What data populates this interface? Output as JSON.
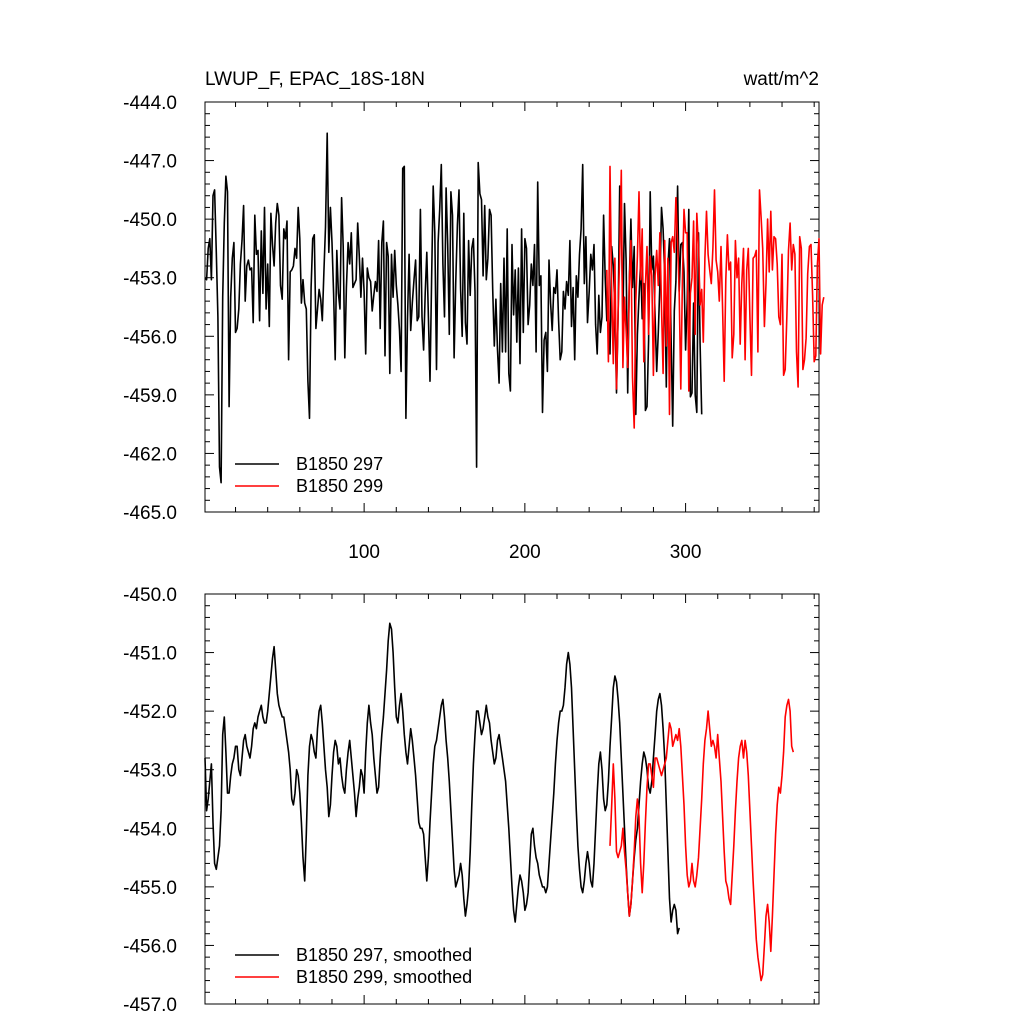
{
  "chart_data": [
    {
      "type": "line",
      "title": "LWUP_F, EPAC_18S-18N",
      "units": "watt/m^2",
      "ylim": [
        -465.0,
        -444.0
      ],
      "yticks": [
        -465.0,
        -462.0,
        -459.0,
        -456.0,
        -453.0,
        -450.0,
        -447.0,
        -444.0
      ],
      "ytick_labels": [
        "-465.0",
        "-462.0",
        "-459.0",
        "-456.0",
        "-453.0",
        "-450.0",
        "-447.0",
        "-444.0"
      ],
      "xlim": [
        1,
        383
      ],
      "xticks": [
        100,
        200,
        300
      ],
      "xtick_labels": [
        "100",
        "200",
        "300"
      ],
      "legend": [
        "B1850 297",
        "B1850 299"
      ],
      "legend_position": "bottom-left",
      "series": [
        {
          "name": "B1850 297",
          "color": "#000000",
          "x_start": 1,
          "values": [
            -453.0,
            -453.1,
            -451.5,
            -451.0,
            -453.1,
            -448.8,
            -448.5,
            -451.7,
            -455.0,
            -462.7,
            -463.5,
            -454.0,
            -450.2,
            -447.8,
            -448.6,
            -459.6,
            -454.0,
            -452.0,
            -451.2,
            -455.8,
            -455.6,
            -454.6,
            -452.3,
            -451.1,
            -449.3,
            -454.2,
            -452.4,
            -452.1,
            -452.6,
            -452.5,
            -455.3,
            -449.8,
            -451.8,
            -451.6,
            -455.2,
            -450.6,
            -453.8,
            -449.4,
            -454.6,
            -452.3,
            -455.5,
            -449.7,
            -451.3,
            -452.4,
            -450.2,
            -449.2,
            -449.8,
            -453.4,
            -454.1,
            -450.5,
            -451.0,
            -450.1,
            -457.2,
            -452.7,
            -452.6,
            -452.4,
            -451.5,
            -452.0,
            -449.4,
            -451.0,
            -454.3,
            -453.1,
            -454.3,
            -454.6,
            -458.3,
            -460.2,
            -453.5,
            -451.0,
            -450.8,
            -455.6,
            -454.6,
            -453.6,
            -454.1,
            -455.2,
            -452.7,
            -450.4,
            -445.6,
            -451.7,
            -449.4,
            -451.2,
            -453.8,
            -457.2,
            -451.6,
            -453.8,
            -454.6,
            -448.9,
            -451.4,
            -457.1,
            -453.5,
            -451.2,
            -452.3,
            -450.7,
            -453.5,
            -453.3,
            -453.1,
            -450.2,
            -451.9,
            -454.0,
            -452.0,
            -453.7,
            -456.9,
            -452.5,
            -453.0,
            -453.2,
            -454.7,
            -453.9,
            -453.2,
            -453.7,
            -451.1,
            -455.6,
            -451.2,
            -450.1,
            -457.0,
            -451.2,
            -451.9,
            -457.9,
            -451.8,
            -454.0,
            -451.6,
            -453.4,
            -454.4,
            -455.7,
            -457.8,
            -447.4,
            -447.3,
            -460.2,
            -455.1,
            -451.8,
            -455.7,
            -454.3,
            -453.1,
            -452.1,
            -455.2,
            -455.0,
            -449.5,
            -455.0,
            -456.7,
            -453.8,
            -451.7,
            -455.0,
            -458.3,
            -453.1,
            -448.3,
            -450.7,
            -457.7,
            -451.2,
            -449.5,
            -447.2,
            -452.3,
            -455.0,
            -448.4,
            -451.3,
            -455.9,
            -448.6,
            -449.8,
            -457.1,
            -453.3,
            -450.3,
            -448.5,
            -453.6,
            -456.0,
            -449.7,
            -455.3,
            -456.4,
            -451.1,
            -453.9,
            -451.5,
            -451.0,
            -453.7,
            -462.7,
            -447.1,
            -448.7,
            -449.0,
            -452.9,
            -449.3,
            -453.1,
            -452.0,
            -449.5,
            -449.8,
            -453.6,
            -456.5,
            -454.1,
            -456.7,
            -458.4,
            -453.3,
            -456.8,
            -452.0,
            -456.8,
            -450.5,
            -457.9,
            -458.8,
            -451.3,
            -454.9,
            -452.6,
            -456.3,
            -452.5,
            -457.4,
            -450.5,
            -455.8,
            -451.0,
            -451.5,
            -455.4,
            -454.4,
            -452.3,
            -453.4,
            -451.3,
            -456.8,
            -448.1,
            -453.4,
            -452.9,
            -459.9,
            -456.2,
            -455.8,
            -457.8,
            -452.1,
            -454.3,
            -455.7,
            -453.5,
            -453.8,
            -452.6,
            -455.2,
            -457.2,
            -456.8,
            -453.7,
            -454.6,
            -453.2,
            -453.9,
            -451.1,
            -455.5,
            -453.5,
            -457.2,
            -452.9,
            -454.0,
            -451.8,
            -450.5,
            -447.2,
            -453.3,
            -450.9,
            -455.3,
            -453.7,
            -451.8,
            -452.6,
            -451.3,
            -455.4,
            -456.9,
            -453.9,
            -455.8,
            -455.0,
            -449.8,
            -453.0,
            -455.2,
            -454.7,
            -456.9,
            -451.4,
            -452.4,
            -454.6,
            -458.9,
            -455.0,
            -448.3,
            -449.9,
            -455.3,
            -449.2,
            -452.1,
            -458.9,
            -453.2,
            -450.0,
            -453.5,
            -451.4,
            -460.0,
            -455.9,
            -454.0,
            -452.2,
            -455.1,
            -453.3,
            -459.8,
            -459.6,
            -456.2,
            -448.6,
            -452.6,
            -451.9,
            -455.0,
            -457.8,
            -455.8,
            -453.3,
            -449.4,
            -450.5,
            -452.9,
            -458.6,
            -452.4,
            -451.0,
            -456.1,
            -460.6,
            -454.7,
            -453.2,
            -448.3,
            -453.7,
            -451.3,
            -451.2,
            -452.7,
            -456.7,
            -454.2,
            -449.5,
            -459.1,
            -458.9,
            -454.3,
            -459.0,
            -459.9,
            -450.7,
            -456.4,
            -460.0
          ]
        },
        {
          "name": "B1850 299",
          "color": "#ff0000",
          "x_start": 251,
          "values": [
            -452.6,
            -457.3,
            -447.3,
            -453.9,
            -457.4,
            -452.0,
            -458.7,
            -454.8,
            -451.8,
            -447.5,
            -457.6,
            -454.0,
            -455.7,
            -457.6,
            -453.2,
            -451.1,
            -458.1,
            -460.7,
            -454.2,
            -451.9,
            -448.6,
            -453.1,
            -450.5,
            -457.3,
            -453.4,
            -451.4,
            -455.9,
            -451.9,
            -452.9,
            -458.0,
            -452.9,
            -451.6,
            -453.4,
            -450.7,
            -454.5,
            -457.9,
            -451.1,
            -456.5,
            -452.0,
            -460.0,
            -451.2,
            -450.9,
            -451.7,
            -448.9,
            -451.2,
            -453.8,
            -458.7,
            -453.2,
            -449.5,
            -450.7,
            -450.7,
            -458.8,
            -453.8,
            -453.0,
            -450.1,
            -455.9,
            -449.7,
            -451.5,
            -454.4,
            -453.6,
            -456.3,
            -452.0,
            -449.6,
            -451.8,
            -452.6,
            -453.3,
            -451.5,
            -448.5,
            -452.1,
            -452.7,
            -454.2,
            -451.4,
            -454.6,
            -458.3,
            -453.1,
            -450.8,
            -452.6,
            -452.2,
            -457.1,
            -455.9,
            -451.1,
            -453.0,
            -452.0,
            -456.4,
            -453.3,
            -451.5,
            -457.2,
            -452.6,
            -451.5,
            -455.0,
            -458.0,
            -452.0,
            -451.9,
            -451.6,
            -456.8,
            -448.5,
            -449.9,
            -451.5,
            -455.5,
            -453.3,
            -450.0,
            -452.7,
            -449.6,
            -452.6,
            -450.9,
            -451.0,
            -452.3,
            -455.0,
            -455.4,
            -451.8,
            -458.0,
            -457.7,
            -454.9,
            -451.6,
            -450.2,
            -452.6,
            -451.3,
            -451.8,
            -456.8,
            -458.6,
            -450.9,
            -451.5,
            -457.7,
            -457.2,
            -456.1,
            -452.8,
            -451.4,
            -451.3,
            -453.9,
            -457.3,
            -457.0,
            -452.3,
            -451.0,
            -456.9,
            -454.4,
            -454.0
          ]
        }
      ]
    },
    {
      "type": "line",
      "title": "",
      "ylim": [
        -457.0,
        -450.0
      ],
      "yticks": [
        -457.0,
        -456.0,
        -455.0,
        -454.0,
        -453.0,
        -452.0,
        -451.0,
        -450.0
      ],
      "ytick_labels": [
        "-457.0",
        "-456.0",
        "-455.0",
        "-454.0",
        "-453.0",
        "-452.0",
        "-451.0",
        "-450.0"
      ],
      "xlim": [
        1,
        383
      ],
      "xticks": [
        100,
        200,
        300
      ],
      "xtick_labels": [],
      "legend": [
        "B1850 297, smoothed",
        "B1850 299, smoothed"
      ],
      "legend_position": "bottom-left",
      "series": [
        {
          "name": "B1850 297, smoothed",
          "color": "#000000",
          "x_start": 1,
          "values": [
            -452.8,
            -453.7,
            -453.5,
            -453.2,
            -452.9,
            -453.9,
            -454.6,
            -454.7,
            -454.5,
            -454.3,
            -453.7,
            -452.4,
            -452.1,
            -452.7,
            -453.4,
            -453.4,
            -453.1,
            -452.9,
            -452.8,
            -452.6,
            -452.6,
            -453.0,
            -453.1,
            -452.8,
            -452.5,
            -452.4,
            -452.6,
            -452.7,
            -452.8,
            -452.6,
            -452.3,
            -452.2,
            -452.3,
            -452.1,
            -452.0,
            -451.9,
            -452.1,
            -452.2,
            -452.2,
            -452.0,
            -451.7,
            -451.4,
            -451.1,
            -450.9,
            -451.3,
            -451.7,
            -451.9,
            -452.0,
            -452.1,
            -452.1,
            -452.3,
            -452.5,
            -452.7,
            -453.0,
            -453.5,
            -453.6,
            -453.4,
            -453.0,
            -453.1,
            -453.4,
            -453.9,
            -454.5,
            -454.9,
            -454.1,
            -453.1,
            -452.6,
            -452.4,
            -452.5,
            -452.7,
            -452.8,
            -452.3,
            -452.0,
            -451.9,
            -452.2,
            -452.6,
            -453.0,
            -453.3,
            -453.8,
            -453.6,
            -453.1,
            -452.7,
            -452.5,
            -452.6,
            -452.9,
            -452.8,
            -453.1,
            -453.3,
            -453.4,
            -453.0,
            -452.7,
            -452.5,
            -452.8,
            -453.1,
            -453.4,
            -453.8,
            -453.5,
            -453.3,
            -453.0,
            -453.1,
            -453.4,
            -452.7,
            -452.2,
            -451.9,
            -452.2,
            -452.4,
            -452.8,
            -453.1,
            -453.4,
            -453.3,
            -452.8,
            -452.4,
            -452.1,
            -451.7,
            -451.3,
            -450.8,
            -450.5,
            -450.6,
            -451.0,
            -451.6,
            -452.1,
            -452.2,
            -451.9,
            -451.7,
            -452.0,
            -452.4,
            -452.7,
            -452.9,
            -452.6,
            -452.3,
            -452.5,
            -452.8,
            -453.1,
            -453.5,
            -453.9,
            -454.0,
            -454.0,
            -454.1,
            -454.5,
            -454.9,
            -454.5,
            -453.9,
            -453.4,
            -452.9,
            -452.6,
            -452.5,
            -452.3,
            -452.1,
            -451.9,
            -451.8,
            -452.1,
            -452.5,
            -452.8,
            -453.2,
            -453.7,
            -454.2,
            -454.7,
            -455.0,
            -454.9,
            -454.8,
            -454.6,
            -454.8,
            -455.2,
            -455.5,
            -455.3,
            -455.0,
            -454.4,
            -453.6,
            -452.9,
            -452.4,
            -452.0,
            -452.0,
            -452.2,
            -452.4,
            -452.3,
            -452.1,
            -451.9,
            -452.1,
            -452.2,
            -452.5,
            -452.7,
            -452.9,
            -452.8,
            -452.5,
            -452.4,
            -452.6,
            -452.8,
            -453.0,
            -453.2,
            -453.6,
            -454.0,
            -454.5,
            -455.0,
            -455.4,
            -455.6,
            -455.3,
            -455.0,
            -454.8,
            -454.9,
            -455.1,
            -455.4,
            -455.3,
            -455.1,
            -454.6,
            -454.1,
            -454.0,
            -454.3,
            -454.5,
            -454.6,
            -454.8,
            -454.9,
            -455.0,
            -455.0,
            -455.1,
            -455.0,
            -454.6,
            -454.2,
            -453.8,
            -453.4,
            -452.9,
            -452.5,
            -452.2,
            -452.0,
            -452.0,
            -451.9,
            -451.6,
            -451.2,
            -451.0,
            -451.2,
            -451.6,
            -452.3,
            -453.0,
            -453.7,
            -454.3,
            -454.7,
            -455.0,
            -455.1,
            -454.9,
            -454.6,
            -454.4,
            -454.6,
            -454.9,
            -455.0,
            -454.6,
            -454.0,
            -453.4,
            -452.9,
            -452.7,
            -453.0,
            -453.5,
            -453.7,
            -453.6,
            -453.2,
            -452.6,
            -452.1,
            -451.6,
            -451.4,
            -451.5,
            -451.8,
            -452.2,
            -452.8,
            -453.4,
            -454.0,
            -454.6,
            -455.1,
            -455.5,
            -455.3,
            -454.9,
            -454.5,
            -454.2,
            -454.0,
            -453.6,
            -453.2,
            -452.9,
            -452.7,
            -452.8,
            -453.0,
            -453.3,
            -453.4,
            -453.2,
            -452.8,
            -452.4,
            -452.0,
            -451.8,
            -451.7,
            -451.9,
            -452.3,
            -452.8,
            -453.6,
            -454.4,
            -455.2,
            -455.6,
            -455.4,
            -455.3,
            -455.4,
            -455.8,
            -455.7
          ]
        },
        {
          "name": "B1850 299, smoothed",
          "color": "#ff0000",
          "x_start": 253,
          "values": [
            -454.3,
            -453.6,
            -452.9,
            -453.5,
            -454.4,
            -454.5,
            -454.4,
            -454.3,
            -454.0,
            -454.4,
            -454.7,
            -455.1,
            -455.5,
            -455.3,
            -454.9,
            -454.4,
            -453.8,
            -453.5,
            -453.8,
            -454.6,
            -455.1,
            -454.6,
            -453.9,
            -453.3,
            -452.9,
            -452.9,
            -453.1,
            -453.3,
            -452.8,
            -452.8,
            -452.9,
            -453.0,
            -453.1,
            -453.0,
            -452.9,
            -452.8,
            -452.5,
            -452.2,
            -452.3,
            -452.6,
            -452.5,
            -452.4,
            -452.5,
            -452.3,
            -452.6,
            -453.1,
            -453.6,
            -454.3,
            -454.8,
            -455.0,
            -454.9,
            -454.6,
            -454.9,
            -455.0,
            -454.8,
            -454.5,
            -454.0,
            -453.5,
            -452.9,
            -452.5,
            -452.3,
            -452.0,
            -452.3,
            -452.6,
            -452.5,
            -452.6,
            -452.8,
            -452.4,
            -452.8,
            -453.2,
            -453.8,
            -454.4,
            -454.9,
            -455.0,
            -455.2,
            -455.3,
            -454.8,
            -454.3,
            -453.7,
            -453.2,
            -452.8,
            -452.6,
            -452.5,
            -452.8,
            -452.5,
            -452.7,
            -453.1,
            -453.7,
            -454.3,
            -454.9,
            -455.4,
            -455.9,
            -456.2,
            -456.4,
            -456.6,
            -456.5,
            -456.0,
            -455.5,
            -455.3,
            -455.6,
            -456.1,
            -455.5,
            -454.8,
            -454.1,
            -453.6,
            -453.3,
            -453.4,
            -453.1,
            -452.7,
            -452.1,
            -451.9,
            -451.8,
            -452.0,
            -452.6,
            -452.7
          ]
        }
      ]
    }
  ]
}
